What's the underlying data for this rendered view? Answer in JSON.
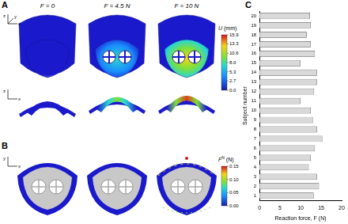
{
  "panel_labels": [
    "A",
    "B",
    "C"
  ],
  "panel_A": {
    "forces": [
      "F = 0",
      "F = 4.5 N",
      "F = 10 N"
    ],
    "axis_triads": [
      [
        "z",
        "y",
        "x"
      ],
      [
        "z",
        "x"
      ]
    ],
    "colorbar": {
      "symbol": "U",
      "unit": "(mm)",
      "range": [
        0,
        15.9
      ],
      "ticks": [
        15.9,
        13.3,
        10.6,
        {
          "value": 8,
          "label": "8.0"
        },
        5.3,
        2.7,
        {
          "value": 0,
          "label": "0.0"
        }
      ]
    }
  },
  "panel_B": {
    "axis_triad": [
      "y",
      "x"
    ],
    "colorbar": {
      "symbol": "F",
      "superscript": "N",
      "unit": "(N)",
      "range": [
        0,
        0.15
      ],
      "ticks": [
        0.15,
        {
          "value": 0.1,
          "label": "0.10"
        },
        0.05,
        {
          "value": 0,
          "label": "0.00"
        }
      ]
    }
  },
  "chart_data": {
    "type": "bar",
    "orientation": "horizontal",
    "x_label": "Reaction force, F (N)",
    "y_label": "Subject number",
    "categories": [
      "1",
      "2",
      "3",
      "4",
      "5",
      "6",
      "7",
      "8",
      "9",
      "10",
      "11",
      "12",
      "13",
      "14",
      "15",
      "16",
      "17",
      "18",
      "19",
      "20"
    ],
    "values": [
      13.2,
      14.5,
      14,
      12,
      12.5,
      13.5,
      15.3,
      14,
      13,
      12.5,
      10,
      13.3,
      14,
      14,
      10,
      13.5,
      12.5,
      11.5,
      12.5,
      12.3
    ],
    "color": "#d9d9d9",
    "xlim": [
      0,
      20
    ],
    "xticks": [
      0,
      5,
      10,
      15,
      20
    ],
    "grid": false
  }
}
